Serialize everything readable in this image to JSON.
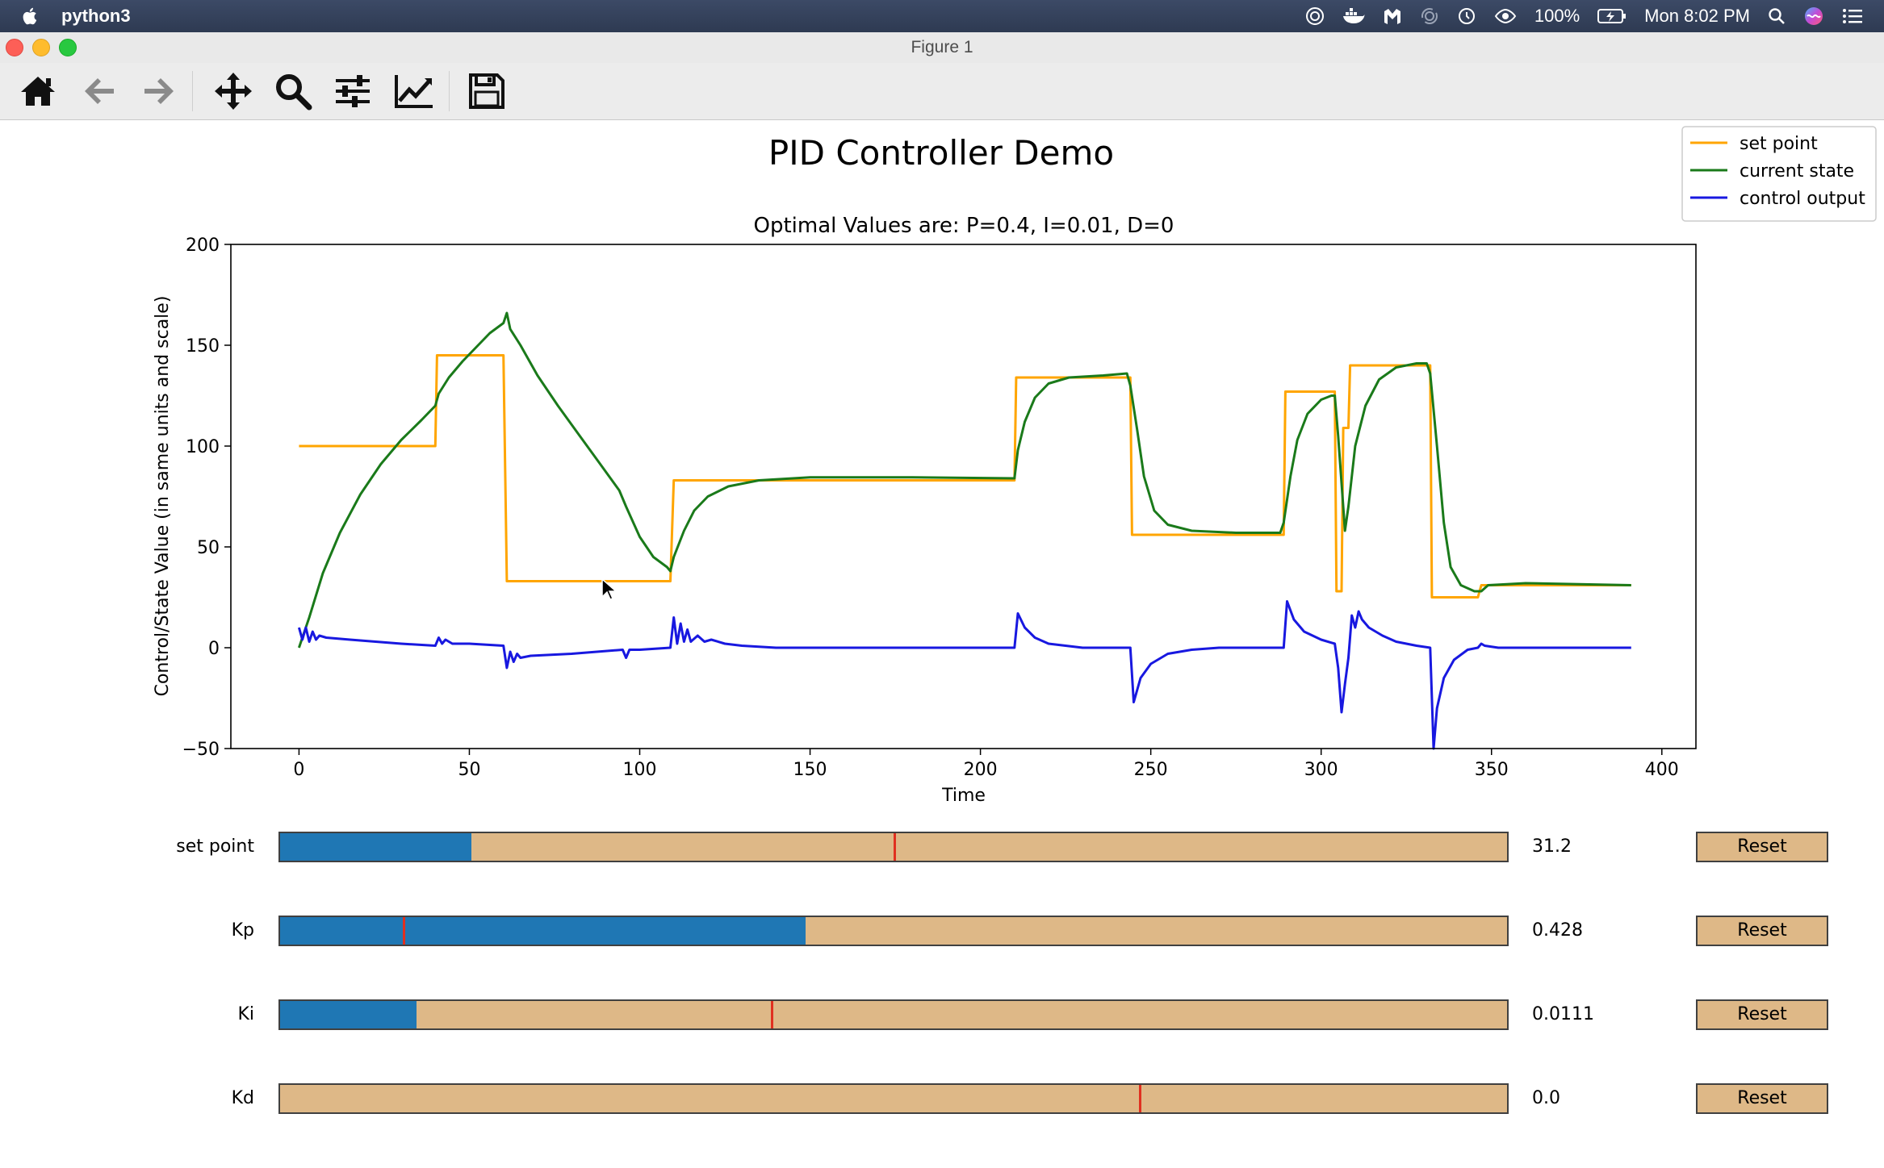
{
  "menubar": {
    "app_name": "python3",
    "battery": "100%",
    "clock": "Mon 8:02 PM"
  },
  "window": {
    "title": "Figure 1"
  },
  "toolbar": {
    "buttons": [
      {
        "name": "home-icon"
      },
      {
        "name": "back-arrow-icon"
      },
      {
        "name": "forward-arrow-icon"
      },
      {
        "name": "pan-move-icon"
      },
      {
        "name": "zoom-magnifier-icon"
      },
      {
        "name": "configure-subplots-icon"
      },
      {
        "name": "edit-axes-icon"
      },
      {
        "name": "save-floppy-icon"
      }
    ]
  },
  "figure": {
    "suptitle": "PID Controller Demo"
  },
  "chart_data": {
    "type": "line",
    "title": "Optimal Values are: P=0.4, I=0.01, D=0",
    "xlabel": "Time",
    "ylabel": "Control/State Value (in same units and scale)",
    "xlim": [
      -20,
      410
    ],
    "ylim": [
      -50,
      200
    ],
    "xticks": [
      0,
      50,
      100,
      150,
      200,
      250,
      300,
      350,
      400
    ],
    "yticks": [
      -50,
      0,
      50,
      100,
      150,
      200
    ],
    "legend_position": "top-right",
    "series": [
      {
        "name": "set point",
        "color": "#ffa500",
        "points": [
          [
            0,
            100
          ],
          [
            40,
            100
          ],
          [
            40.5,
            145
          ],
          [
            60,
            145
          ],
          [
            61,
            33
          ],
          [
            109,
            33
          ],
          [
            110,
            83
          ],
          [
            210,
            83
          ],
          [
            210.5,
            134
          ],
          [
            244,
            134
          ],
          [
            244.5,
            56
          ],
          [
            289,
            56
          ],
          [
            289.5,
            127
          ],
          [
            304,
            127
          ],
          [
            304.5,
            28
          ],
          [
            306,
            28
          ],
          [
            306.5,
            109
          ],
          [
            308,
            109
          ],
          [
            308.5,
            140
          ],
          [
            332,
            140
          ],
          [
            332.5,
            25
          ],
          [
            346,
            25
          ],
          [
            347,
            31
          ],
          [
            391,
            31
          ]
        ]
      },
      {
        "name": "current state",
        "color": "#1a7a1a",
        "points": [
          [
            0,
            0
          ],
          [
            3,
            15
          ],
          [
            7,
            37
          ],
          [
            12,
            57
          ],
          [
            18,
            76
          ],
          [
            24,
            91
          ],
          [
            30,
            103
          ],
          [
            36,
            113
          ],
          [
            40,
            120
          ],
          [
            41,
            126
          ],
          [
            44,
            134
          ],
          [
            48,
            142
          ],
          [
            52,
            149
          ],
          [
            56,
            156
          ],
          [
            60,
            161
          ],
          [
            61,
            166
          ],
          [
            62,
            158
          ],
          [
            65,
            150
          ],
          [
            70,
            135
          ],
          [
            76,
            120
          ],
          [
            82,
            106
          ],
          [
            88,
            92
          ],
          [
            94,
            78
          ],
          [
            96,
            70
          ],
          [
            100,
            55
          ],
          [
            104,
            45
          ],
          [
            108,
            40
          ],
          [
            109,
            38
          ],
          [
            110,
            45
          ],
          [
            113,
            58
          ],
          [
            116,
            68
          ],
          [
            120,
            75
          ],
          [
            126,
            80
          ],
          [
            135,
            83
          ],
          [
            150,
            84.5
          ],
          [
            180,
            84.5
          ],
          [
            210,
            84
          ],
          [
            211,
            98
          ],
          [
            213,
            112
          ],
          [
            216,
            124
          ],
          [
            220,
            131
          ],
          [
            226,
            134
          ],
          [
            236,
            135
          ],
          [
            243,
            136
          ],
          [
            244,
            130
          ],
          [
            246,
            108
          ],
          [
            248,
            85
          ],
          [
            251,
            68
          ],
          [
            255,
            61
          ],
          [
            262,
            58
          ],
          [
            275,
            57
          ],
          [
            288,
            57
          ],
          [
            289,
            62
          ],
          [
            291,
            85
          ],
          [
            293,
            103
          ],
          [
            296,
            116
          ],
          [
            300,
            123
          ],
          [
            303,
            125
          ],
          [
            304,
            125
          ],
          [
            305,
            105
          ],
          [
            307,
            58
          ],
          [
            308,
            70
          ],
          [
            310,
            100
          ],
          [
            313,
            120
          ],
          [
            317,
            133
          ],
          [
            322,
            139
          ],
          [
            328,
            141
          ],
          [
            331,
            141
          ],
          [
            332,
            136
          ],
          [
            334,
            100
          ],
          [
            336,
            62
          ],
          [
            338,
            40
          ],
          [
            341,
            31
          ],
          [
            345,
            28
          ],
          [
            347,
            28
          ],
          [
            349,
            31
          ],
          [
            360,
            32
          ],
          [
            391,
            31
          ]
        ]
      },
      {
        "name": "control output",
        "color": "#1818e0",
        "points": [
          [
            0,
            10
          ],
          [
            1,
            4
          ],
          [
            2,
            10
          ],
          [
            3,
            3
          ],
          [
            4,
            8
          ],
          [
            5,
            4
          ],
          [
            6,
            6
          ],
          [
            8,
            5
          ],
          [
            15,
            4
          ],
          [
            30,
            2
          ],
          [
            40,
            1
          ],
          [
            41,
            5
          ],
          [
            42,
            2
          ],
          [
            43,
            4
          ],
          [
            45,
            2
          ],
          [
            50,
            2
          ],
          [
            60,
            1
          ],
          [
            61,
            -10
          ],
          [
            62,
            -2
          ],
          [
            63,
            -7
          ],
          [
            64,
            -3
          ],
          [
            65,
            -5
          ],
          [
            68,
            -4
          ],
          [
            80,
            -3
          ],
          [
            95,
            -1
          ],
          [
            96,
            -5
          ],
          [
            97,
            -1
          ],
          [
            100,
            -1
          ],
          [
            109,
            0
          ],
          [
            110,
            15
          ],
          [
            111,
            2
          ],
          [
            112,
            12
          ],
          [
            113,
            3
          ],
          [
            114,
            9
          ],
          [
            115,
            3
          ],
          [
            117,
            6
          ],
          [
            119,
            3
          ],
          [
            121,
            4
          ],
          [
            125,
            2
          ],
          [
            130,
            1
          ],
          [
            140,
            0
          ],
          [
            210,
            0
          ],
          [
            211,
            17
          ],
          [
            213,
            10
          ],
          [
            216,
            5
          ],
          [
            220,
            2
          ],
          [
            225,
            1
          ],
          [
            230,
            0
          ],
          [
            244,
            0
          ],
          [
            245,
            -27
          ],
          [
            247,
            -15
          ],
          [
            250,
            -8
          ],
          [
            255,
            -3
          ],
          [
            262,
            -1
          ],
          [
            270,
            0
          ],
          [
            289,
            0
          ],
          [
            290,
            23
          ],
          [
            292,
            14
          ],
          [
            295,
            8
          ],
          [
            300,
            4
          ],
          [
            304,
            2
          ],
          [
            305,
            -10
          ],
          [
            306,
            -32
          ],
          [
            307,
            -18
          ],
          [
            308,
            -5
          ],
          [
            309,
            16
          ],
          [
            310,
            10
          ],
          [
            311,
            18
          ],
          [
            312,
            14
          ],
          [
            314,
            10
          ],
          [
            318,
            6
          ],
          [
            322,
            3
          ],
          [
            328,
            1
          ],
          [
            332,
            0
          ],
          [
            333,
            -50
          ],
          [
            334,
            -30
          ],
          [
            336,
            -15
          ],
          [
            339,
            -6
          ],
          [
            343,
            -1
          ],
          [
            346,
            0
          ],
          [
            347,
            2
          ],
          [
            348,
            1
          ],
          [
            352,
            0
          ],
          [
            391,
            0
          ]
        ]
      }
    ]
  },
  "sliders": [
    {
      "label": "set point",
      "value": "31.2",
      "fill": 0.156,
      "marker": 0.5,
      "reset": "Reset"
    },
    {
      "label": "Kp",
      "value": "0.428",
      "fill": 0.428,
      "marker": 0.1,
      "reset": "Reset"
    },
    {
      "label": "Ki",
      "value": "0.0111",
      "fill": 0.111,
      "marker": 0.4,
      "reset": "Reset"
    },
    {
      "label": "Kd",
      "value": "0.0",
      "fill": 0.0,
      "marker": 0.7,
      "reset": "Reset"
    }
  ]
}
